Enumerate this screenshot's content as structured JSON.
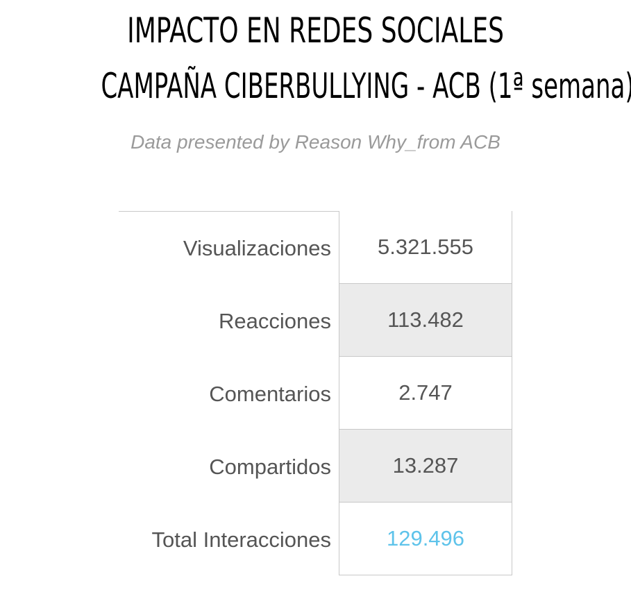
{
  "title_line1": "IMPACTO EN REDES SOCIALES",
  "title_line2": "CAMPAÑA CIBERBULLYING - ACB (1ª semana)",
  "subtitle": "Data presented by Reason Why_from ACB",
  "colors": {
    "highlight_value": "#5ec3ea",
    "shaded_row": "#ebebeb",
    "text": "#555555"
  },
  "chart_data": {
    "type": "table",
    "title": "IMPACTO EN REDES SOCIALES CAMPAÑA CIBERBULLYING - ACB (1ª semana)",
    "subtitle": "Data presented by Reason Why_from ACB",
    "rows": [
      {
        "label": "Visualizaciones",
        "value": 5321555,
        "display": "5.321.555"
      },
      {
        "label": "Reacciones",
        "value": 113482,
        "display": "113.482"
      },
      {
        "label": "Comentarios",
        "value": 2747,
        "display": "2.747"
      },
      {
        "label": "Compartidos",
        "value": 13287,
        "display": "13.287"
      },
      {
        "label": "Total Interacciones",
        "value": 129496,
        "display": "129.496"
      }
    ]
  }
}
